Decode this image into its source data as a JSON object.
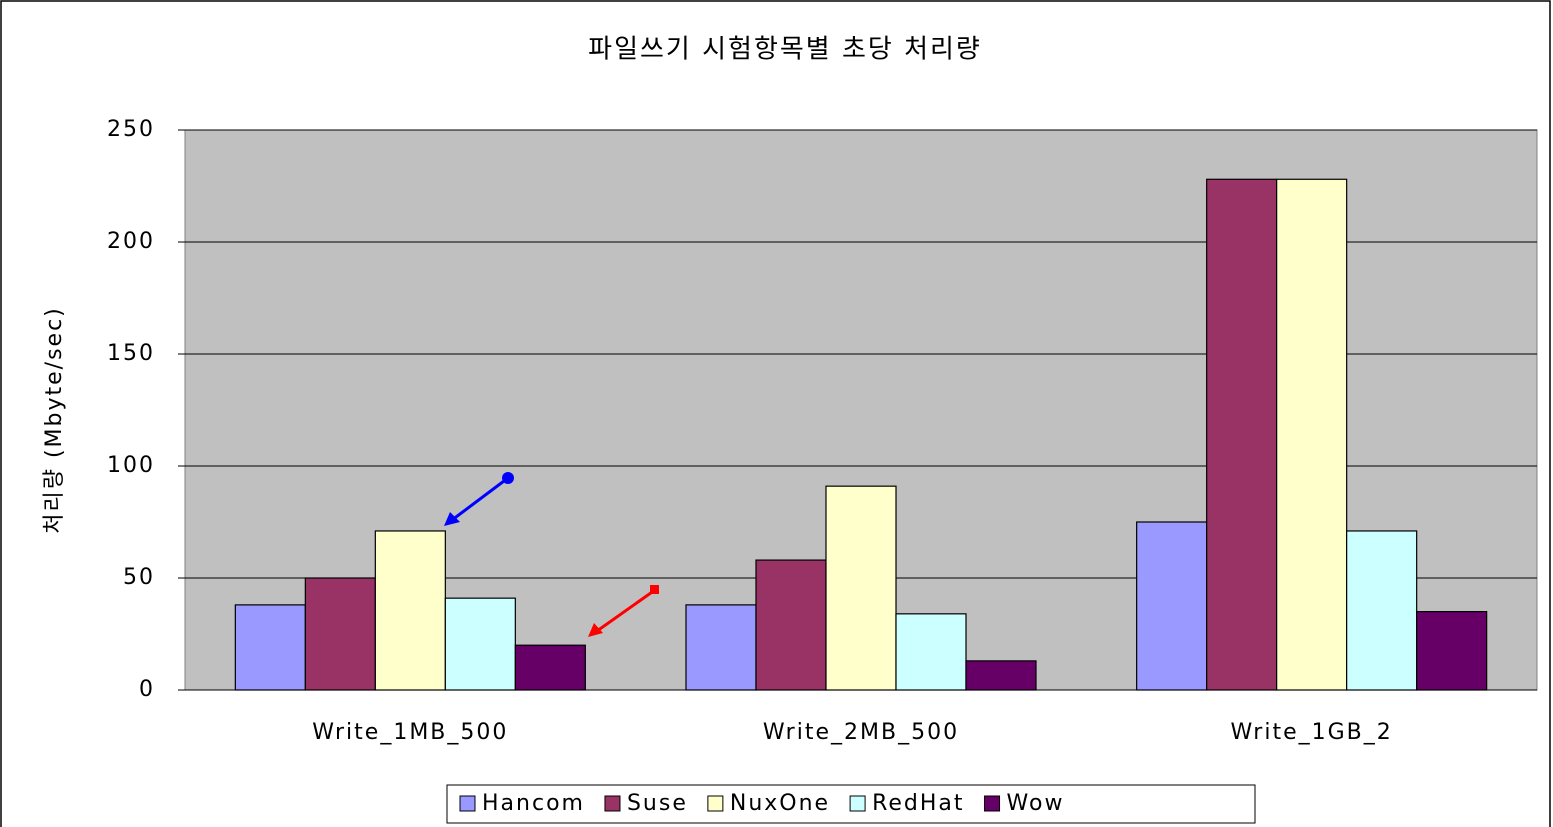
{
  "chart_data": {
    "type": "bar",
    "title": "파일쓰기 시험항목별 초당 처리량",
    "y_label": "처리량 (Mbyte/sec)",
    "categories": [
      "Write_1MB_500",
      "Write_2MB_500",
      "Write_1GB_2"
    ],
    "series": [
      {
        "name": "Hancom",
        "color": "#9999ff",
        "values": [
          38,
          38,
          75
        ]
      },
      {
        "name": "Suse",
        "color": "#993366",
        "values": [
          50,
          58,
          228
        ]
      },
      {
        "name": "NuxOne",
        "color": "#ffffcc",
        "values": [
          71,
          91,
          228
        ]
      },
      {
        "name": "RedHat",
        "color": "#ccffff",
        "values": [
          41,
          34,
          71
        ]
      },
      {
        "name": "Wow",
        "color": "#660066",
        "values": [
          20,
          13,
          35
        ]
      }
    ],
    "ylim": [
      0,
      250
    ],
    "yticks": [
      0,
      50,
      100,
      150,
      200,
      250
    ],
    "grid": true,
    "legend": "bottom"
  }
}
